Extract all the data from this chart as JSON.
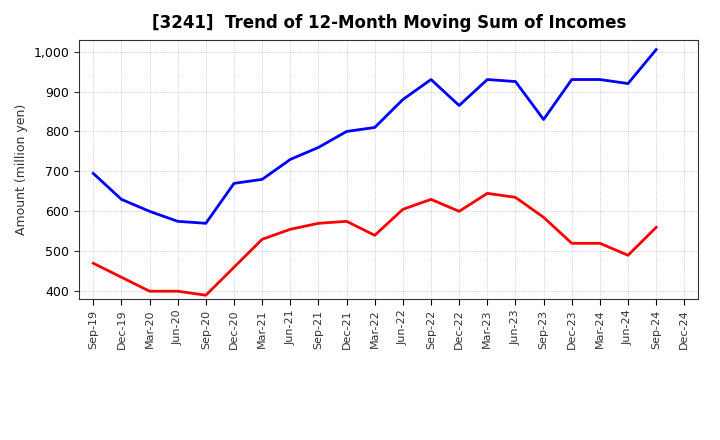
{
  "title": "[3241]  Trend of 12-Month Moving Sum of Incomes",
  "ylabel": "Amount (million yen)",
  "background_color": "#ffffff",
  "grid_color": "#aaaaaa",
  "x_labels": [
    "Sep-19",
    "Dec-19",
    "Mar-20",
    "Jun-20",
    "Sep-20",
    "Dec-20",
    "Mar-21",
    "Jun-21",
    "Sep-21",
    "Dec-21",
    "Mar-22",
    "Jun-22",
    "Sep-22",
    "Dec-22",
    "Mar-23",
    "Jun-23",
    "Sep-23",
    "Dec-23",
    "Mar-24",
    "Jun-24",
    "Sep-24",
    "Dec-24"
  ],
  "ordinary_income": [
    695,
    630,
    600,
    575,
    570,
    670,
    680,
    730,
    760,
    800,
    810,
    880,
    930,
    865,
    930,
    925,
    830,
    930,
    930,
    920,
    1005,
    null
  ],
  "net_income": [
    470,
    435,
    400,
    400,
    390,
    460,
    530,
    555,
    570,
    575,
    540,
    605,
    630,
    600,
    645,
    635,
    585,
    520,
    520,
    490,
    560,
    null
  ],
  "ylim": [
    380,
    1030
  ],
  "yticks": [
    400,
    500,
    600,
    700,
    800,
    900,
    1000
  ],
  "ordinary_color": "#0000ff",
  "net_color": "#ff0000",
  "line_width": 2.0,
  "title_fontsize": 12,
  "tick_fontsize": 8,
  "ylabel_fontsize": 9
}
